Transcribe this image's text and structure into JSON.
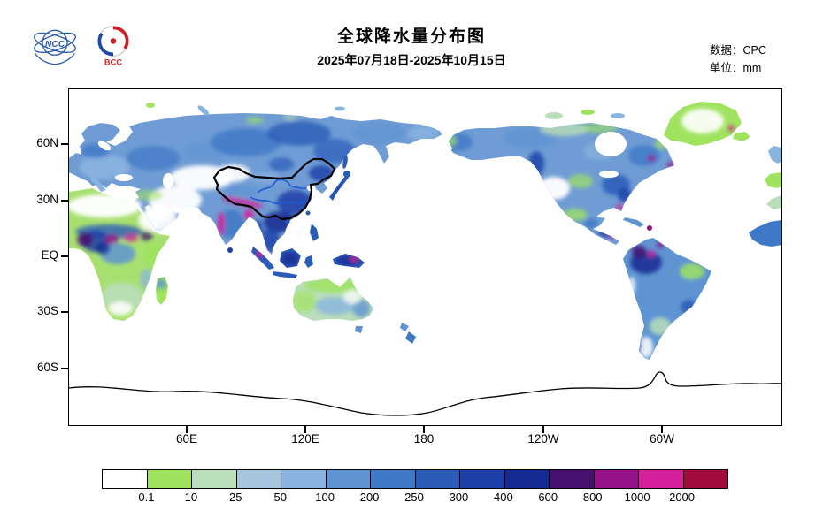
{
  "header": {
    "title": "全球降水量分布图",
    "subtitle": "2025年07月18日-2025年10月15日",
    "data_source_label": "数据：CPC",
    "unit_label": "单位：mm",
    "ncc_logo_text": "NCC",
    "bcc_logo_text": "BCC"
  },
  "map": {
    "lat_ticks": [
      "60N",
      "30N",
      "EQ",
      "30S",
      "60S"
    ],
    "lon_ticks": [
      "60E",
      "120E",
      "180",
      "120W",
      "60W"
    ]
  },
  "legend": {
    "unit_values": [
      "0.1",
      "10",
      "25",
      "50",
      "100",
      "200",
      "250",
      "300",
      "400",
      "600",
      "800",
      "1000",
      "2000"
    ],
    "colors": [
      "#ffffff",
      "#9fe35f",
      "#b9deb9",
      "#a7c6dd",
      "#8ab4e0",
      "#5f94d2",
      "#3e78c6",
      "#2a5cb8",
      "#1d40a8",
      "#152a93",
      "#45106e",
      "#951289",
      "#d6219c",
      "#a00a3c"
    ]
  },
  "chart_data": {
    "type": "heatmap",
    "title": "全球降水量分布图",
    "period": "2025年07月18日-2025年10月15日",
    "source": "CPC",
    "unit": "mm",
    "projection": "global lat-lon, Pacific-centered (0E-360E, 90N-90S)",
    "scale_thresholds_mm": [
      0.1,
      10,
      25,
      50,
      100,
      200,
      250,
      300,
      400,
      600,
      800,
      1000,
      2000
    ],
    "scale_colors": [
      "#ffffff",
      "#9fe35f",
      "#b9deb9",
      "#a7c6dd",
      "#8ab4e0",
      "#5f94d2",
      "#3e78c6",
      "#2a5cb8",
      "#1d40a8",
      "#152a93",
      "#45106e",
      "#951289",
      "#d6219c",
      "#a00a3c"
    ],
    "lat_ticks": [
      "60N",
      "30N",
      "EQ",
      "30S",
      "60S"
    ],
    "lon_ticks": [
      "60E",
      "120E",
      "180",
      "120W",
      "60W"
    ],
    "notes": "Land-only accumulated precipitation shading; oceans and Antarctica unshaded; China national boundary drawn in bold black with Yellow and Yangtze rivers in blue."
  }
}
